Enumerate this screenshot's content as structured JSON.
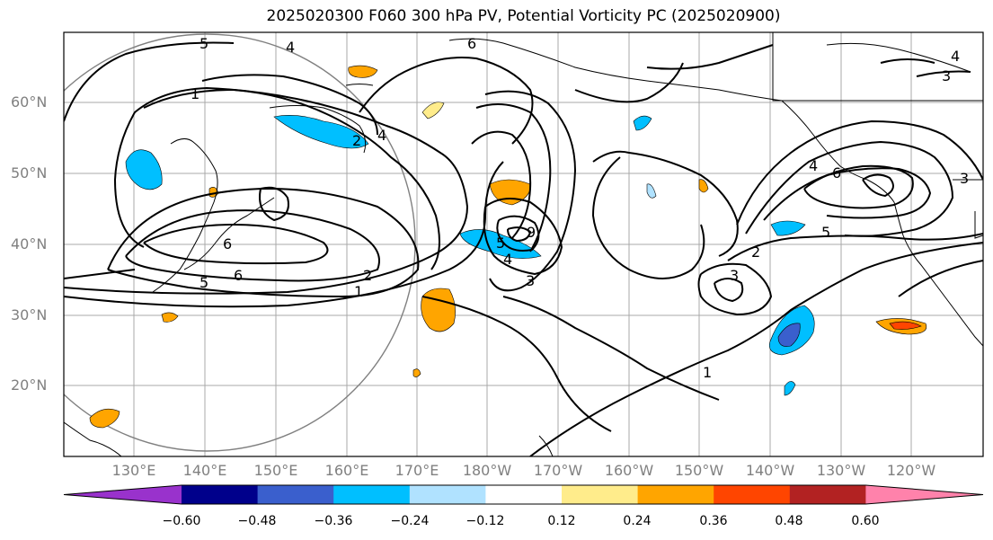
{
  "title": "2025020300 F060 300 hPa PV, Potential Vorticity PC (2025020900)",
  "lat_labels": [
    "60°N",
    "50°N",
    "40°N",
    "30°N",
    "20°N"
  ],
  "lon_labels": [
    "130°E",
    "140°E",
    "150°E",
    "160°E",
    "170°E",
    "180°W",
    "170°W",
    "160°W",
    "150°W",
    "140°W",
    "130°W",
    "120°W"
  ],
  "contour_labels": [
    "5",
    "4",
    "6",
    "3",
    "4",
    "1",
    "2",
    "4",
    "5",
    "6",
    "5",
    "9",
    "4",
    "3",
    "1",
    "2",
    "6",
    "3",
    "2",
    "3",
    "5",
    "4",
    "6",
    "1"
  ],
  "colorbar": {
    "colors": [
      "#9932cc",
      "#00008b",
      "#3a5fcd",
      "#00bfff",
      "#b0e2ff",
      "#ffffff",
      "#ffec8b",
      "#ffa500",
      "#ff4500",
      "#b22222",
      "#ff82ab"
    ],
    "ticks": [
      "−0.60",
      "−0.48",
      "−0.36",
      "−0.24",
      "−0.12",
      "0.12",
      "0.24",
      "0.36",
      "0.48",
      "0.60"
    ]
  }
}
